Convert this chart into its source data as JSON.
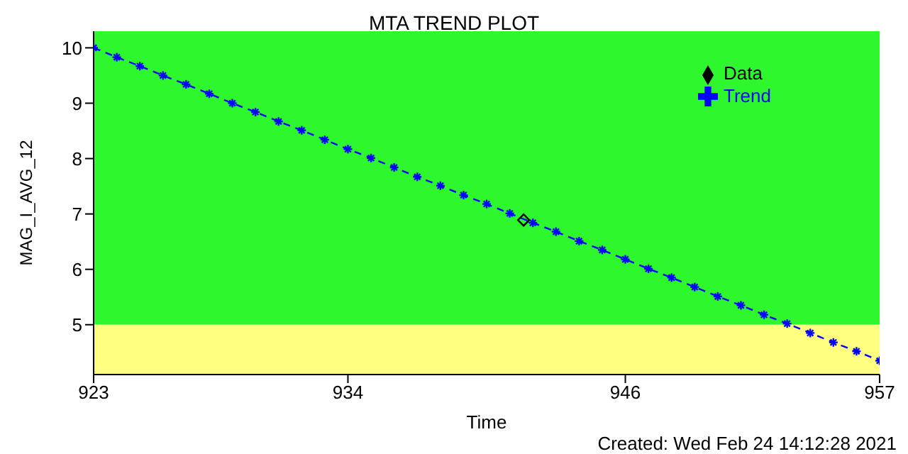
{
  "chart_data": {
    "type": "line",
    "title": "MTA TREND PLOT",
    "xlabel": "Time",
    "ylabel": "MAG_I_AVG_12",
    "annotations": [
      "Created: Wed Feb 24 14:12:28 2021"
    ],
    "xlim": [
      923,
      957
    ],
    "xticks": [
      923,
      934,
      946,
      957
    ],
    "ylim": [
      4.1,
      10.3
    ],
    "yticks": [
      5,
      6,
      7,
      8,
      9,
      10
    ],
    "series": [
      {
        "name": "Data",
        "type": "scatter",
        "color": "#000000",
        "marker": "diamond",
        "x": [
          941.6
        ],
        "values": [
          6.89
        ]
      },
      {
        "name": "Trend",
        "color": "#0000ff",
        "marker": "cross",
        "line_style": "dashed",
        "x": [
          923,
          924,
          925,
          926,
          927,
          928,
          929,
          930,
          931,
          932,
          933,
          934,
          935,
          936,
          937,
          938,
          939,
          940,
          941,
          942,
          943,
          944,
          945,
          946,
          947,
          948,
          949,
          950,
          951,
          952,
          953,
          954,
          955,
          956,
          957
        ],
        "values": [
          10.0,
          9.83,
          9.67,
          9.5,
          9.34,
          9.17,
          9.0,
          8.84,
          8.67,
          8.51,
          8.34,
          8.17,
          8.01,
          7.84,
          7.67,
          7.51,
          7.34,
          7.18,
          7.01,
          6.84,
          6.68,
          6.51,
          6.35,
          6.18,
          6.01,
          5.85,
          5.68,
          5.51,
          5.35,
          5.18,
          5.02,
          4.85,
          4.68,
          4.52,
          4.35
        ]
      }
    ],
    "bands": [
      {
        "axis": "y",
        "from": 5,
        "to": 10.3,
        "color": "#2ef72e"
      },
      {
        "axis": "y",
        "from": 4.1,
        "to": 5,
        "color": "#ffff80"
      }
    ],
    "legend": "top right"
  }
}
